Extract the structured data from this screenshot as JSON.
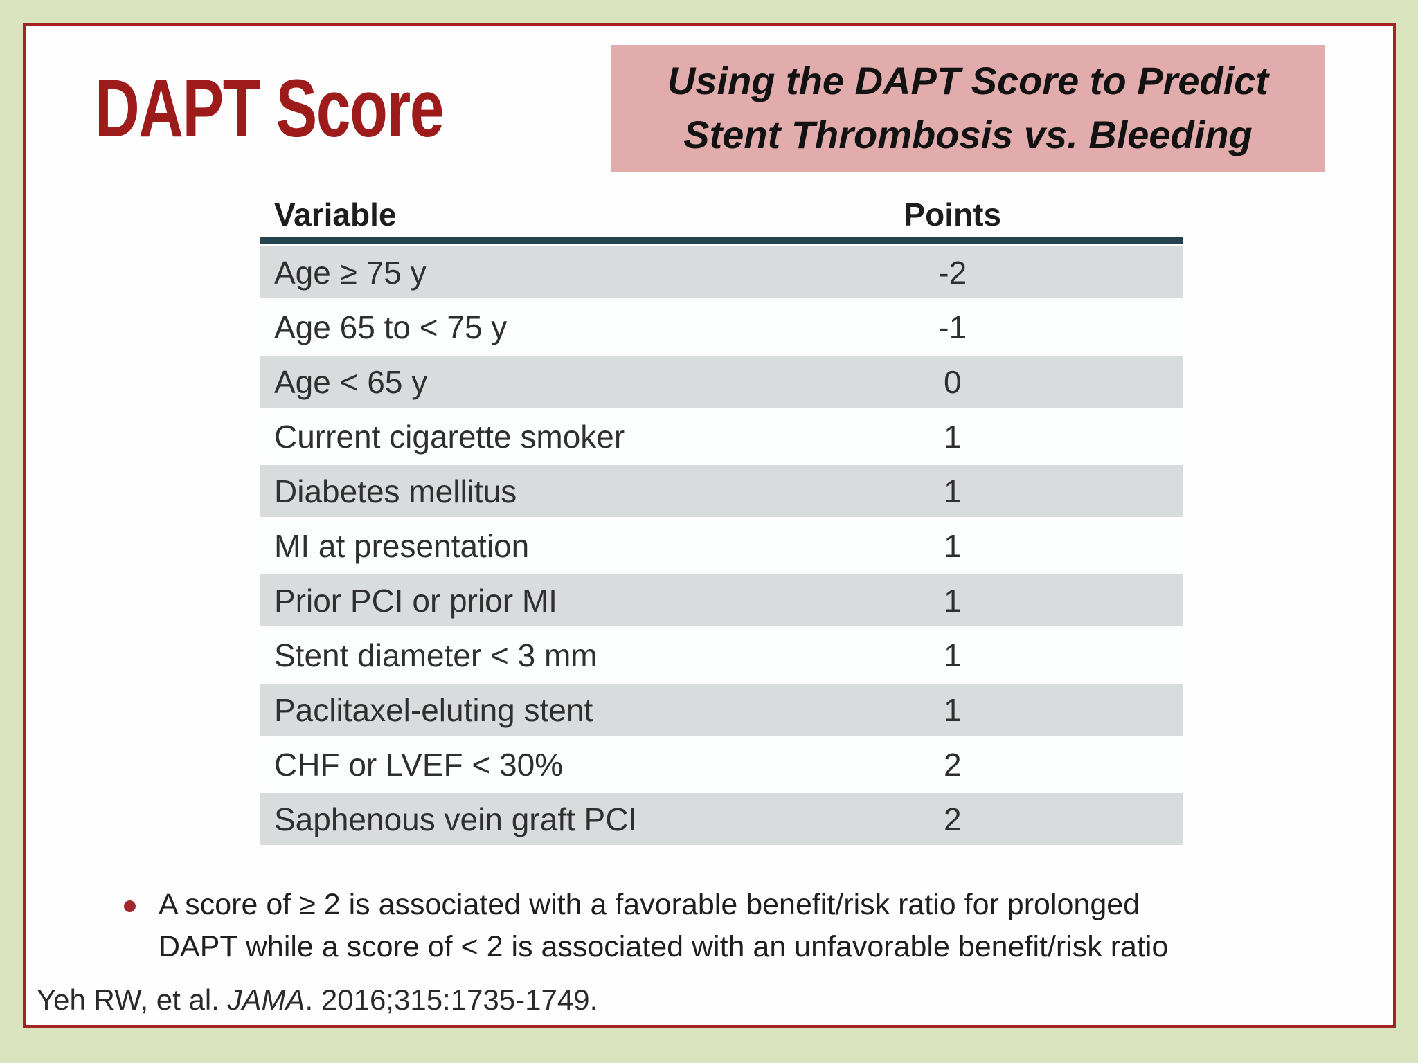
{
  "slide": {
    "title": "DAPT Score",
    "banner": {
      "line1": "Using the DAPT Score to Predict",
      "line2": "Stent Thrombosis vs. Bleeding"
    },
    "table": {
      "columns": [
        "Variable",
        "Points"
      ],
      "rows": [
        {
          "variable": "Age ≥ 75 y",
          "points": "-2"
        },
        {
          "variable": "Age 65 to < 75 y",
          "points": "-1"
        },
        {
          "variable": "Age < 65 y",
          "points": "0"
        },
        {
          "variable": "Current cigarette smoker",
          "points": "1"
        },
        {
          "variable": "Diabetes mellitus",
          "points": "1"
        },
        {
          "variable": "MI at presentation",
          "points": "1"
        },
        {
          "variable": "Prior PCI or prior MI",
          "points": "1"
        },
        {
          "variable": "Stent diameter < 3 mm",
          "points": "1"
        },
        {
          "variable": "Paclitaxel-eluting stent",
          "points": "1"
        },
        {
          "variable": "CHF or LVEF < 30%",
          "points": "2"
        },
        {
          "variable": "Saphenous vein graft PCI",
          "points": "2"
        }
      ]
    },
    "note": {
      "line1": "A score of ≥ 2 is associated with a favorable benefit/risk ratio for prolonged",
      "line2": "DAPT while a score of < 2 is associated with an unfavorable benefit/risk ratio"
    },
    "citation": {
      "prefix": "Yeh RW, et al. ",
      "journal": "JAMA",
      "suffix": ". 2016;315:1735-1749."
    }
  },
  "colors": {
    "background_green": "#D9E4BE",
    "slide_border_red": "#A52225",
    "title_red": "#9E1B1B",
    "banner_pink": "#E2ACAC",
    "row_gray": "#D9DCDD",
    "header_rule_navy": "#26444F",
    "bullet_red": "#A3282B",
    "text_dark": "#2F2F2F"
  }
}
